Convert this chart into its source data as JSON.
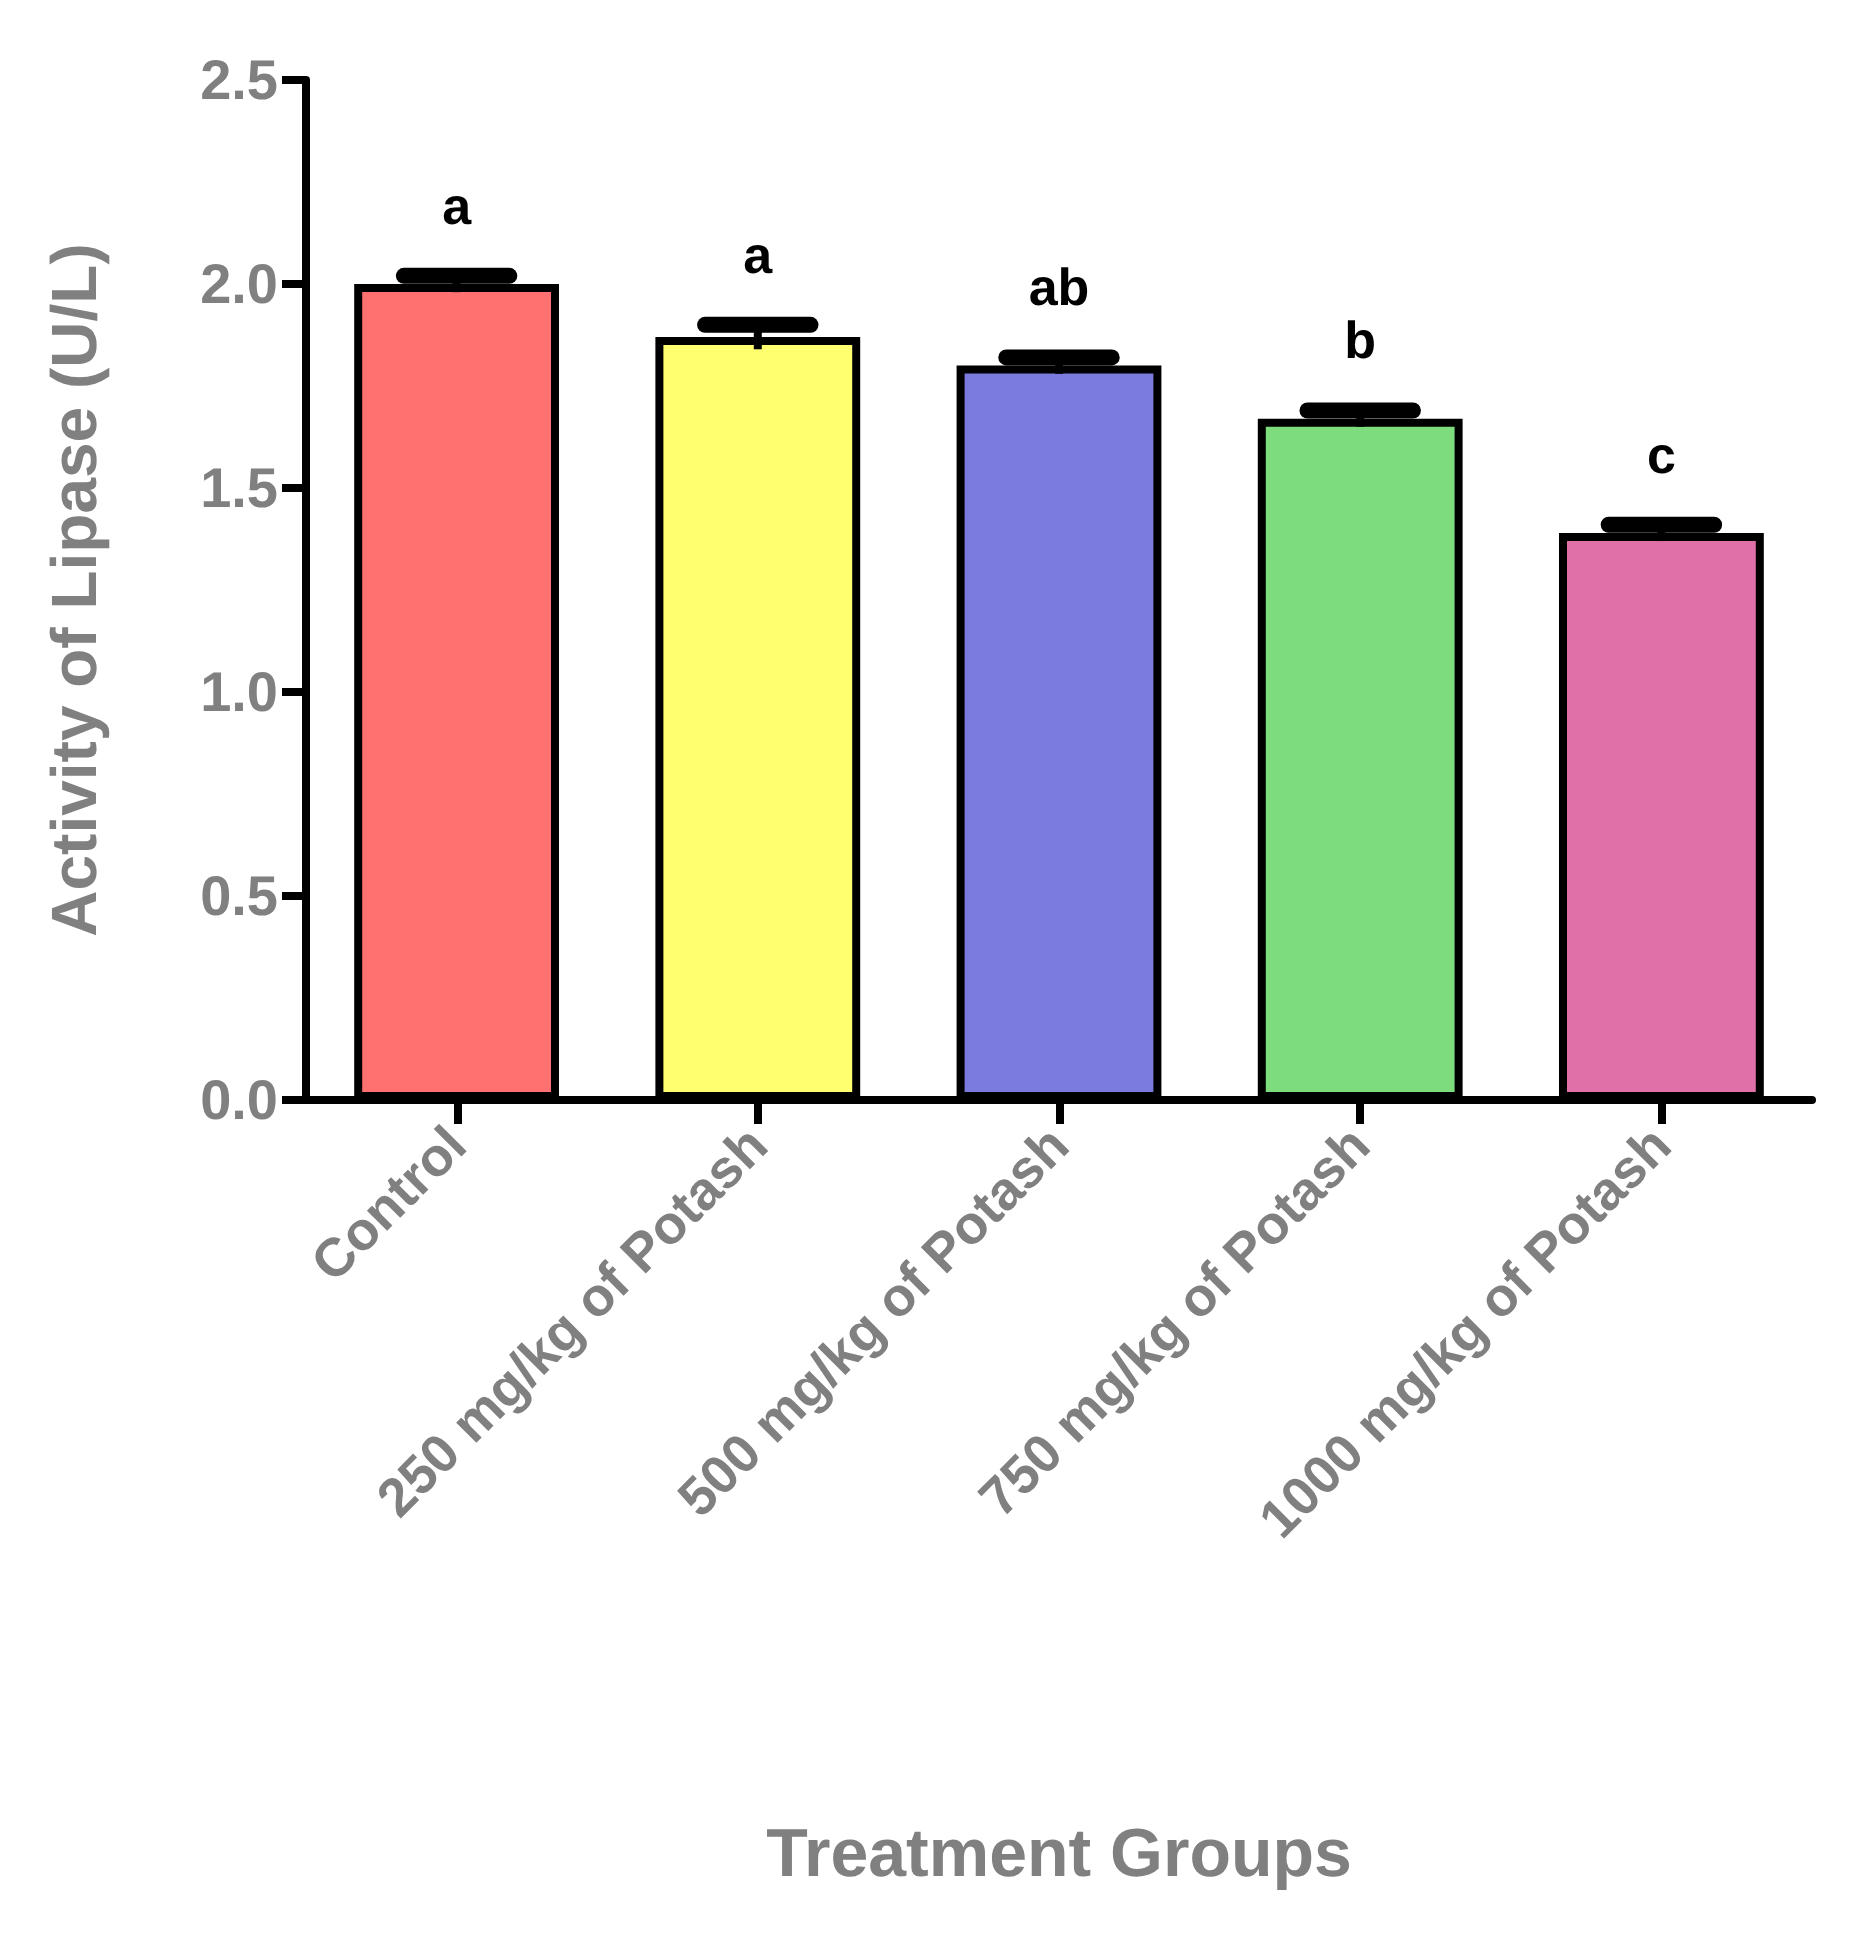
{
  "chart_data": {
    "type": "bar",
    "xlabel": "Treatment Groups",
    "ylabel": "Activity of Lipase (U/L)",
    "categories": [
      "Control",
      "250 mg/kg of Potash",
      "500 mg/kg of Potash",
      "750 mg/kg of Potash",
      "1000 mg/kg of Potash"
    ],
    "values": [
      2.0,
      1.87,
      1.8,
      1.67,
      1.39
    ],
    "errors": [
      0.02,
      0.03,
      0.02,
      0.02,
      0.02
    ],
    "colors": [
      "#ff7070",
      "#ffff70",
      "#7b7bdd",
      "#7ddd7d",
      "#e070a8"
    ],
    "ylim": [
      0,
      2.5
    ],
    "yticks": [
      {
        "value": 0,
        "label": "0.0"
      },
      0.5,
      {
        "value": 1,
        "label": "1.0"
      },
      1.5,
      {
        "value": 2,
        "label": "2.0"
      },
      2.5
    ],
    "grid": false,
    "annotations": [
      {
        "text": "a",
        "x": "Control",
        "y": 2.02
      },
      {
        "text": "a",
        "x": "250 mg/kg of Potash",
        "y": 1.9
      },
      {
        "text": "ab",
        "x": "500 mg/kg of Potash",
        "y": 1.82
      },
      {
        "text": "b",
        "x": "750 mg/kg of Potash",
        "y": 1.69
      },
      {
        "text": "c",
        "x": "1000 mg/kg of Potash",
        "y": 1.41
      }
    ]
  }
}
